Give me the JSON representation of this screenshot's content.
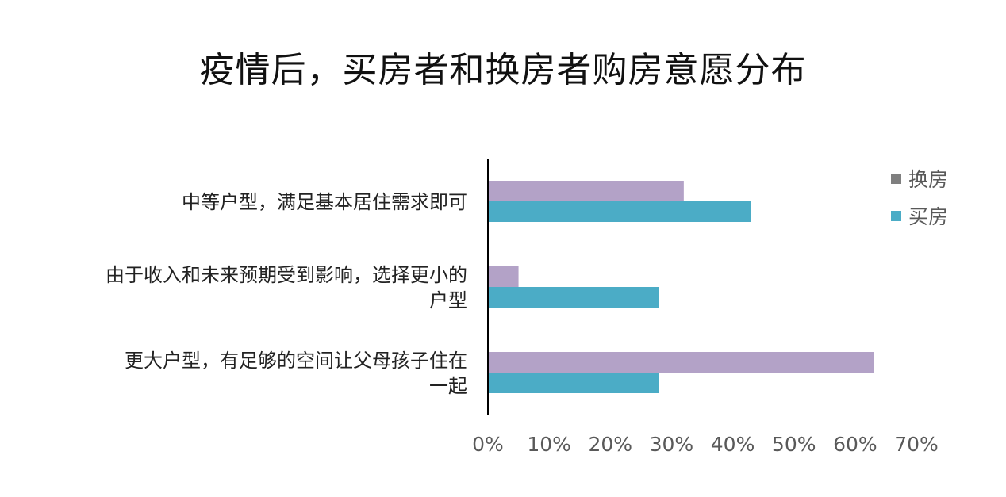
{
  "chart_data": {
    "type": "bar",
    "orientation": "horizontal",
    "title": "疫情后，买房者和换房者购房意愿分布",
    "categories": [
      [
        "中等户型，满足基本居住需求即可"
      ],
      [
        "由于收入和未来预期受到影响，选择更小的",
        "户型"
      ],
      [
        "更大户型，有足够的空间让父母孩子住在",
        "一起"
      ]
    ],
    "series": [
      {
        "name": "换房",
        "color": "#b3a2c7",
        "values": [
          32,
          5,
          63
        ]
      },
      {
        "name": "买房",
        "color": "#4bacc6",
        "values": [
          43,
          28,
          28
        ]
      }
    ],
    "xlim": [
      0,
      70
    ],
    "xticks": [
      "0%",
      "10%",
      "20%",
      "30%",
      "40%",
      "50%",
      "60%",
      "70%"
    ],
    "grid": false,
    "legend_position": "top-right",
    "legend_marker_color": "#7f7f7f"
  }
}
